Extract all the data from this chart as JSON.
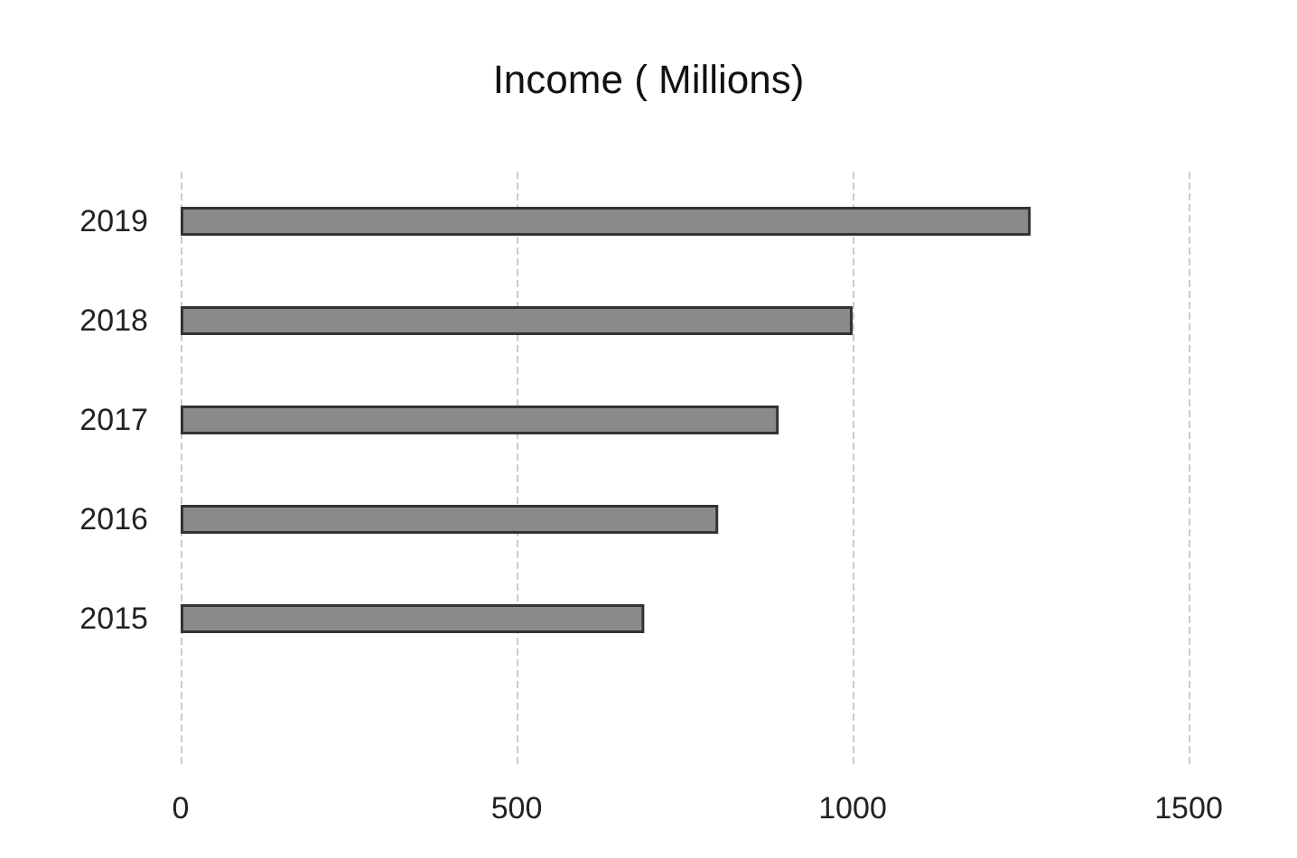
{
  "chart_data": {
    "type": "bar",
    "orientation": "horizontal",
    "title": "Income ( Millions)",
    "categories": [
      "2019",
      "2018",
      "2017",
      "2016",
      "2015",
      null
    ],
    "values": [
      1265,
      1000,
      890,
      800,
      690,
      null
    ],
    "color": "#8a8a8a",
    "xlim": [
      0,
      1500
    ],
    "xticks": [
      0,
      500,
      1000,
      1500
    ],
    "grid": "x"
  }
}
